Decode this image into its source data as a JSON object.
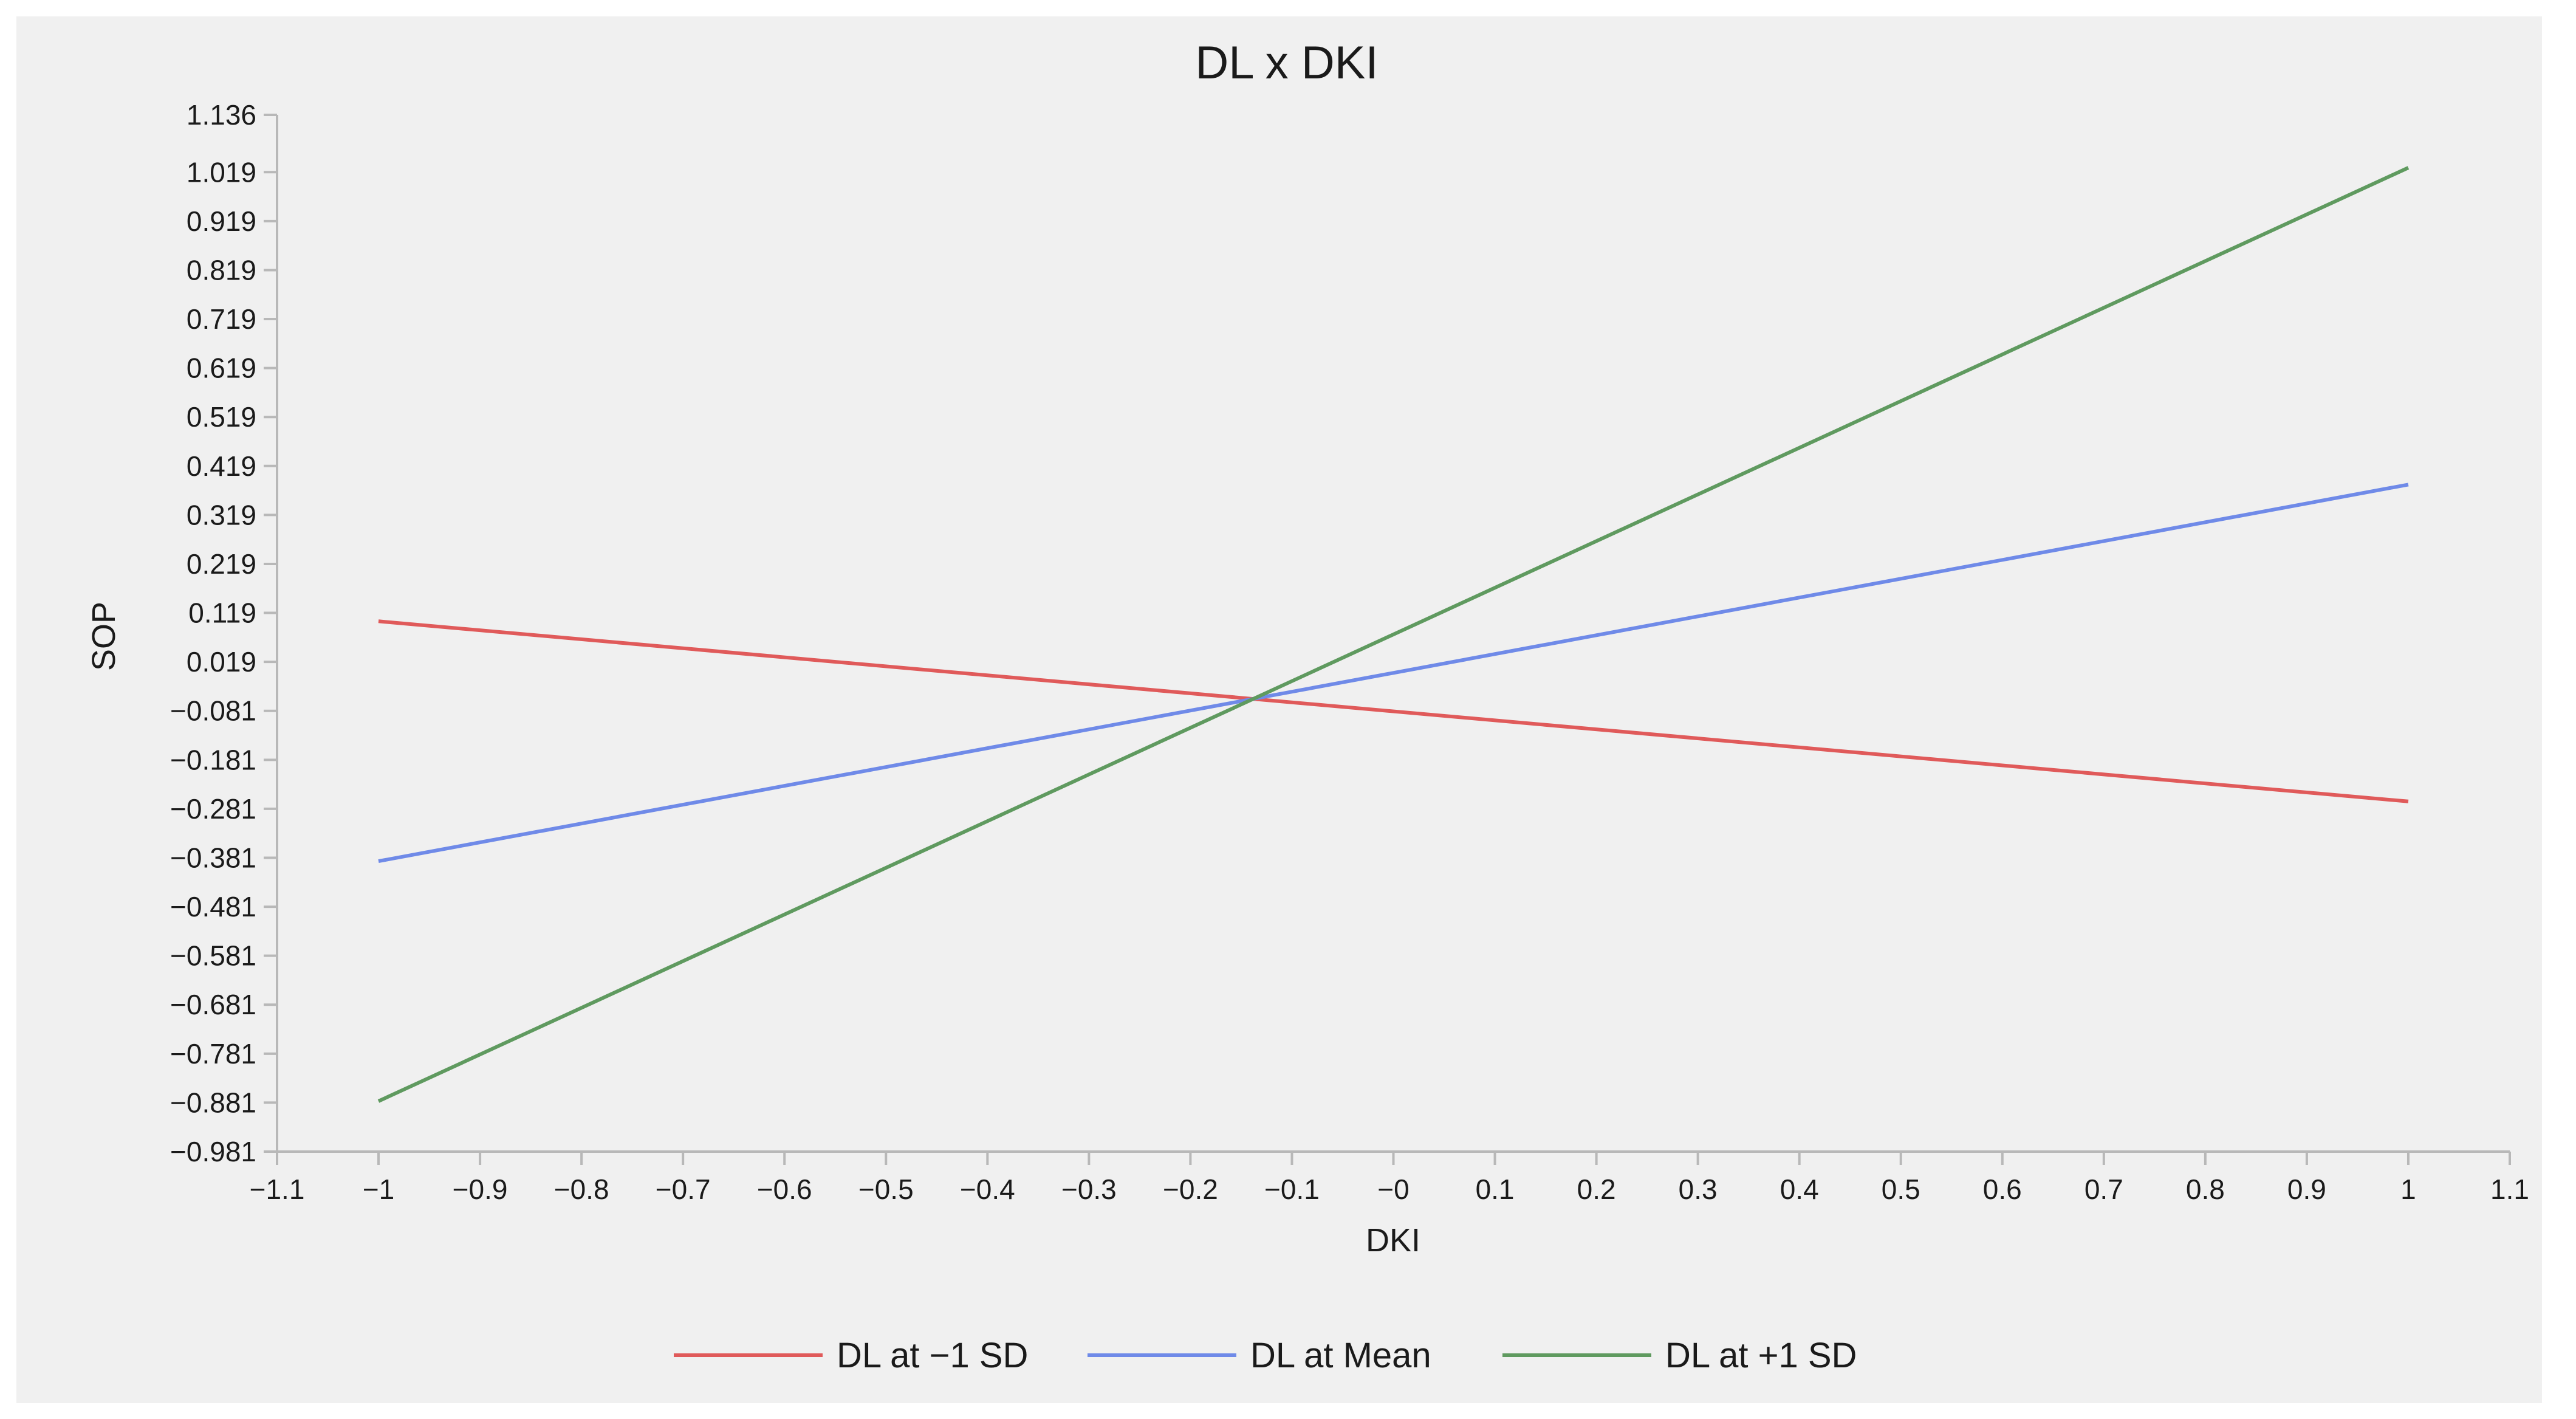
{
  "chart_data": {
    "type": "line",
    "title": "DL x DKI",
    "xlabel": "DKI",
    "ylabel": "SOP",
    "xlim": [
      -1.1,
      1.1
    ],
    "ylim": [
      -0.981,
      1.136
    ],
    "x_ticks": [
      "−1.1",
      "−1",
      "−0.9",
      "−0.8",
      "−0.7",
      "−0.6",
      "−0.5",
      "−0.4",
      "−0.3",
      "−0.2",
      "−0.1",
      "−0",
      "0.1",
      "0.2",
      "0.3",
      "0.4",
      "0.5",
      "0.6",
      "0.7",
      "0.8",
      "0.9",
      "1",
      "1.1"
    ],
    "y_ticks": [
      "1.136",
      "1.019",
      "0.919",
      "0.819",
      "0.719",
      "0.619",
      "0.519",
      "0.419",
      "0.319",
      "0.219",
      "0.119",
      "0.019",
      "−0.081",
      "−0.181",
      "−0.281",
      "−0.381",
      "−0.481",
      "−0.581",
      "−0.681",
      "−0.781",
      "−0.881",
      "−0.981"
    ],
    "grid": false,
    "legend_position": "bottom",
    "series": [
      {
        "name": "DL at −1 SD",
        "color": "#e05a5a",
        "x": [
          -1,
          1
        ],
        "y": [
          0.102,
          -0.266
        ]
      },
      {
        "name": "DL at Mean",
        "color": "#6f8ae8",
        "x": [
          -1,
          1
        ],
        "y": [
          -0.388,
          0.381
        ]
      },
      {
        "name": "DL at +1 SD",
        "color": "#5f9a5f",
        "x": [
          -1,
          1
        ],
        "y": [
          -0.878,
          1.028
        ]
      }
    ]
  }
}
